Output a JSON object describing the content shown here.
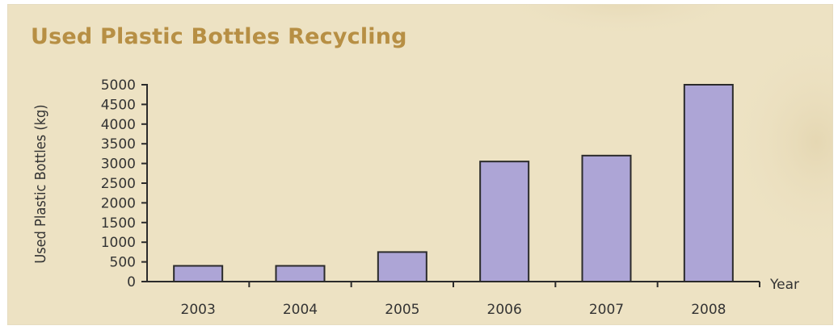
{
  "chart_data": {
    "type": "bar",
    "title": "Used Plastic Bottles Recycling",
    "xlabel": "Year",
    "ylabel": "Used Plastic Bottles (kg)",
    "categories": [
      "2003",
      "2004",
      "2005",
      "2006",
      "2007",
      "2008"
    ],
    "values": [
      400,
      400,
      750,
      3050,
      3200,
      5000
    ],
    "ylim": [
      0,
      5000
    ],
    "yticks": [
      0,
      500,
      1000,
      1500,
      2000,
      2500,
      3000,
      3500,
      4000,
      4500,
      5000
    ],
    "grid": false,
    "legend": "none",
    "colors": {
      "bar": "#ada5d6",
      "title": "#b78f44",
      "background": "#ede2c3"
    }
  }
}
